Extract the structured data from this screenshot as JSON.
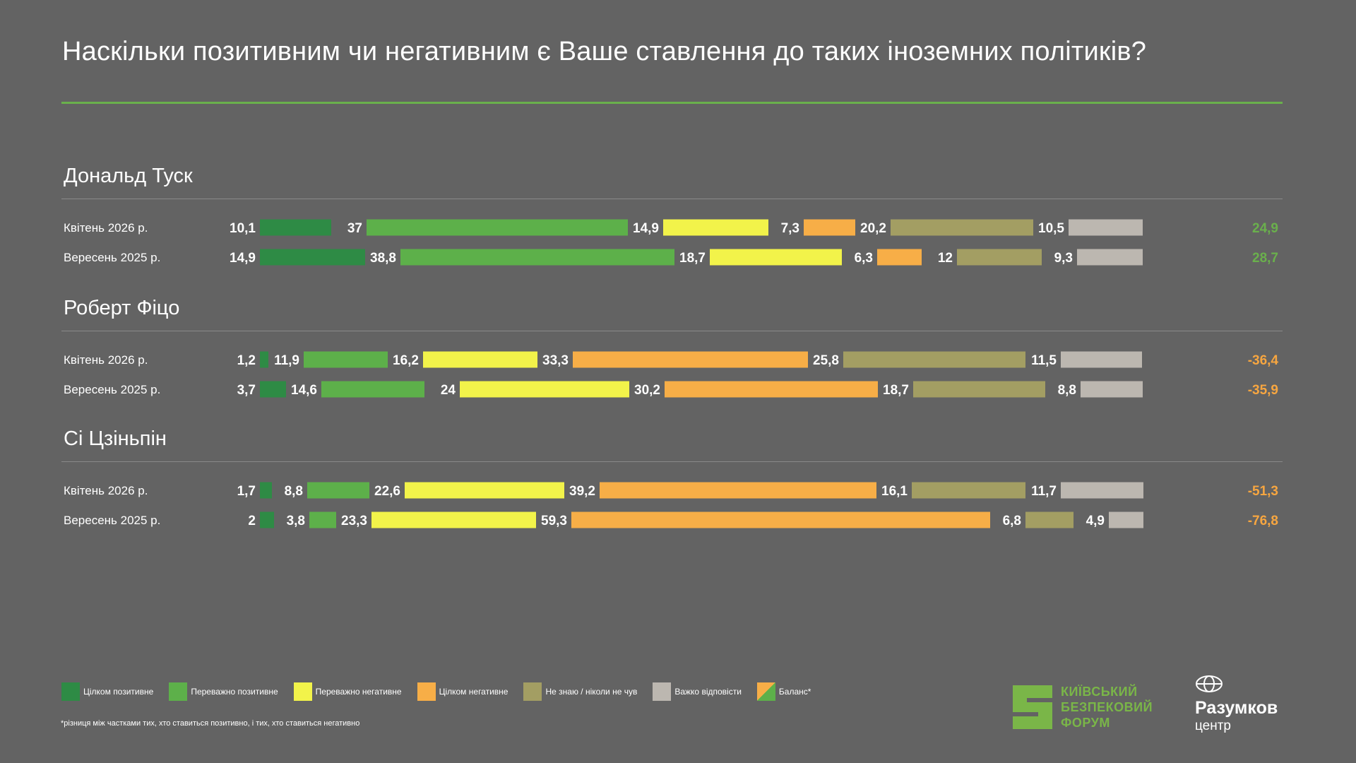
{
  "header": {
    "title": "Наскільки позитивним чи негативним є Ваше ставлення до таких іноземних політиків?"
  },
  "colors": {
    "background": "#636363",
    "accent_rule": "#6ab04c",
    "row_rule": "#8a8a8a",
    "balance_positive": "#6ab04c",
    "balance_negative": "#f7a640"
  },
  "chart_data": {
    "type": "bar",
    "orientation": "horizontal-stacked-segments",
    "title": "Наскільки позитивним чи негативним є Ваше ставлення до таких іноземних політиків?",
    "unit": "%",
    "categories": [
      {
        "key": "fully_positive",
        "label": "Цілком позитивне",
        "color": "#2e8b45"
      },
      {
        "key": "mostly_positive",
        "label": "Переважно позитивне",
        "color": "#5db04a"
      },
      {
        "key": "mostly_negative",
        "label": "Переважно негативне",
        "color": "#f2f34a"
      },
      {
        "key": "fully_negative",
        "label": "Цілком негативне",
        "color": "#f7ae47"
      },
      {
        "key": "dont_know",
        "label": "Не знаю / ніколи не чув",
        "color": "#a39e63"
      },
      {
        "key": "hard_to_say",
        "label": "Важко відповісти",
        "color": "#bcb7b0"
      }
    ],
    "balance_label": "Баланс*",
    "groups": [
      {
        "name": "Дональд Туск",
        "rows": [
          {
            "label": "Квітень  2026 р.",
            "values": [
              10.1,
              37,
              14.9,
              7.3,
              20.2,
              10.5
            ],
            "value_labels": [
              "10,1",
              "37",
              "14,9",
              "7,3",
              "20,2",
              "10,5"
            ],
            "balance": 24.9,
            "balance_label": "24,9"
          },
          {
            "label": "Вересень 2025 р.",
            "values": [
              14.9,
              38.8,
              18.7,
              6.3,
              12,
              9.3
            ],
            "value_labels": [
              "14,9",
              "38,8",
              "18,7",
              "6,3",
              "12",
              "9,3"
            ],
            "balance": 28.7,
            "balance_label": "28,7"
          }
        ]
      },
      {
        "name": "Роберт Фіцо",
        "rows": [
          {
            "label": "Квітень  2026 р.",
            "values": [
              1.2,
              11.9,
              16.2,
              33.3,
              25.8,
              11.5
            ],
            "value_labels": [
              "1,2",
              "11,9",
              "16,2",
              "33,3",
              "25,8",
              "11,5"
            ],
            "balance": -36.4,
            "balance_label": "-36,4"
          },
          {
            "label": "Вересень 2025 р.",
            "values": [
              3.7,
              14.6,
              24,
              30.2,
              18.7,
              8.8
            ],
            "value_labels": [
              "3,7",
              "14,6",
              "24",
              "30,2",
              "18,7",
              "8,8"
            ],
            "balance": -35.9,
            "balance_label": "-35,9"
          }
        ]
      },
      {
        "name": "Сі Цзіньпін",
        "rows": [
          {
            "label": "Квітень  2026 р.",
            "values": [
              1.7,
              8.8,
              22.6,
              39.2,
              16.1,
              11.7
            ],
            "value_labels": [
              "1,7",
              "8,8",
              "22,6",
              "39,2",
              "16,1",
              "11,7"
            ],
            "balance": -51.3,
            "balance_label": "-51,3"
          },
          {
            "label": "Вересень 2025 р.",
            "values": [
              2,
              3.8,
              23.3,
              59.3,
              6.8,
              4.9
            ],
            "value_labels": [
              "2",
              "3,8",
              "23,3",
              "59,3",
              "6,8",
              "4,9"
            ],
            "balance": -76.8,
            "balance_label": "-76,8"
          }
        ]
      }
    ]
  },
  "legend": {
    "items": [
      {
        "label": "Цілком позитивне",
        "color": "#2e8b45"
      },
      {
        "label": "Переважно позитивне",
        "color": "#5db04a"
      },
      {
        "label": "Переважно негативне",
        "color": "#f2f34a"
      },
      {
        "label": "Цілком негативне",
        "color": "#f7ae47"
      },
      {
        "label": "Не знаю / ніколи не чув",
        "color": "#a39e63"
      },
      {
        "label": "Важко відповісти",
        "color": "#bcb7b0"
      }
    ],
    "balance": {
      "label": "Баланс*",
      "color_a": "#f7ae47",
      "color_b": "#5db04a"
    }
  },
  "footnote": "*різниця між частками тих, хто ставиться позитивно, і тих, хто ставиться негативно",
  "logos": {
    "kbf": {
      "line1": "КИЇВСЬКИЙ",
      "line2": "БЕЗПЕКОВИЙ",
      "line3": "ФОРУМ",
      "color": "#7ab648"
    },
    "razumkov": {
      "name": "Разумков",
      "sub": "центр"
    }
  }
}
